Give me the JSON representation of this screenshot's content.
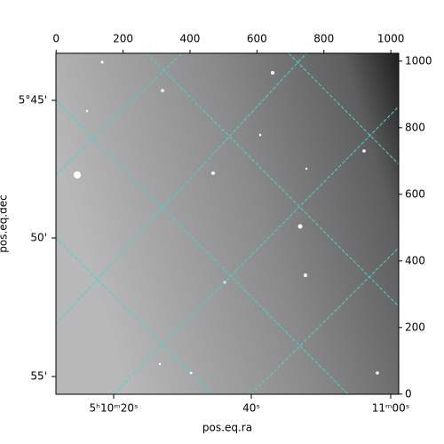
{
  "chart_data": {
    "type": "image",
    "xlabel": "pos.eq.ra",
    "ylabel": "pos.eq.dec",
    "xlim": [
      -0.5,
      1023.5
    ],
    "ylim": [
      -0.5,
      1023.5
    ],
    "xticks": [
      0,
      200,
      400,
      600,
      800,
      1000
    ],
    "yticks": [
      0,
      200,
      400,
      600,
      800,
      1000
    ],
    "ra_ticks": [
      "5ʰ10ᵐ20ˢ",
      "40ˢ",
      "11ᵐ00ˢ"
    ],
    "dec_ticks": [
      "5°45'",
      "50'",
      "55'"
    ],
    "grid_color": "#3fd6d6"
  }
}
